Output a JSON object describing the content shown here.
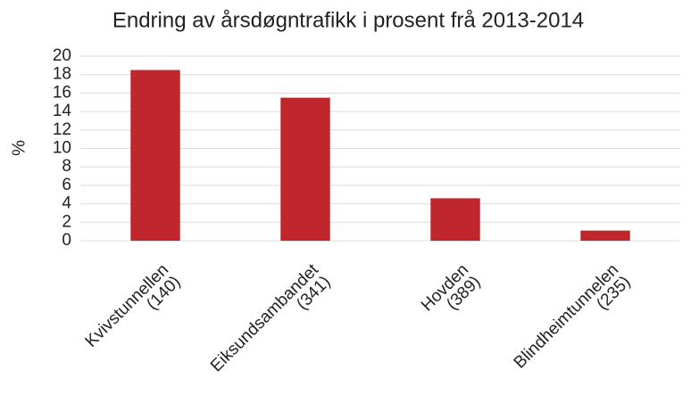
{
  "chart_data": {
    "type": "bar",
    "title": "Endring av årsdøgntrafikk  i prosent frå 2013-2014",
    "y_label": "%",
    "categories": [
      [
        "Kvivstunnellen",
        "(140)"
      ],
      [
        "Eiksundsambandet",
        "(341)"
      ],
      [
        "Hovden",
        "(389)"
      ],
      [
        "Blindheimtunnelen",
        "(235)"
      ]
    ],
    "values": [
      18.5,
      15.5,
      4.6,
      1.1
    ],
    "color": "#c0272d",
    "ylim": [
      0,
      20
    ],
    "yticks": [
      0,
      2,
      4,
      6,
      8,
      10,
      12,
      14,
      16,
      18,
      20
    ],
    "grid": true
  }
}
